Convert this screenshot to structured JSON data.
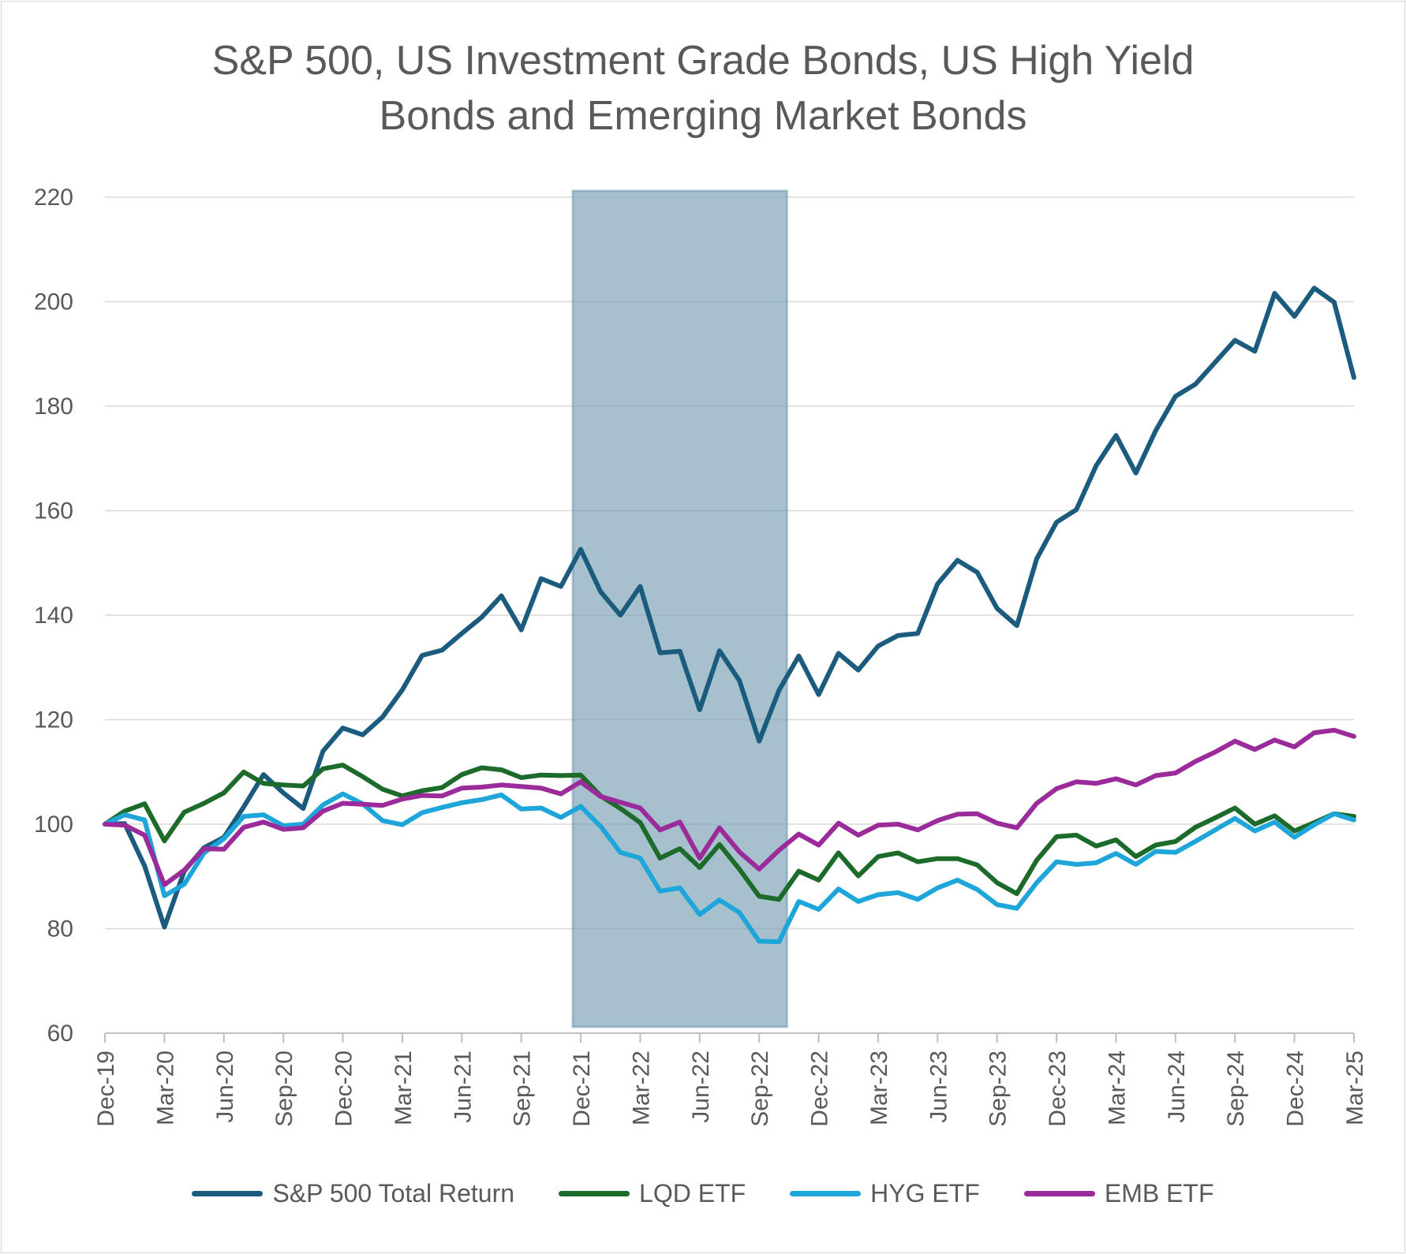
{
  "chart_data": {
    "type": "line",
    "title": "S&P 500, US Investment Grade Bonds, US High Yield Bonds and Emerging Market Bonds",
    "title_lines": [
      "S&P 500, US Investment Grade Bonds, US High Yield",
      "Bonds and Emerging Market Bonds"
    ],
    "xlabel": "",
    "ylabel": "",
    "ylim": [
      60,
      220
    ],
    "yticks": [
      60,
      80,
      100,
      120,
      140,
      160,
      180,
      200,
      220
    ],
    "grid": true,
    "legend_position": "bottom",
    "x_tick_labels": [
      "Dec-19",
      "Mar-20",
      "Jun-20",
      "Sep-20",
      "Dec-20",
      "Mar-21",
      "Jun-21",
      "Sep-21",
      "Dec-21",
      "Mar-22",
      "Jun-22",
      "Sep-22",
      "Dec-22",
      "Mar-23",
      "Jun-23",
      "Sep-23",
      "Dec-23",
      "Mar-24",
      "Jun-24",
      "Sep-24",
      "Dec-24",
      "Mar-25"
    ],
    "x_start": "2019-12",
    "x_end": "2025-03",
    "shaded_region": {
      "from": "2021-12",
      "to": "2022-10",
      "color": "#6f99b0"
    },
    "series": [
      {
        "name": "S&P 500 Total Return",
        "color": "#1a5b7e",
        "values": [
          100,
          100.1,
          92,
          80.3,
          91,
          95.5,
          97.5,
          103.3,
          109.5,
          106,
          103,
          114,
          118.4,
          117.1,
          120.5,
          125.7,
          132.3,
          133.3,
          136.5,
          139.6,
          143.7,
          137.2,
          147,
          145.5,
          152.6,
          144.5,
          140,
          145.5,
          132.8,
          133.1,
          121.9,
          133.2,
          127.5,
          115.9,
          125.6,
          132.2,
          124.8,
          132.7,
          129.5,
          134.1,
          136.1,
          136.5,
          146,
          150.5,
          148.2,
          141.3,
          138,
          150.8,
          157.8,
          160.2,
          168.6,
          174.4,
          167.2,
          175.3,
          181.9,
          184.2,
          188.4,
          192.6,
          190.5,
          201.6,
          197.2,
          202.6,
          199.9,
          185.5
        ]
      },
      {
        "name": "LQD ETF",
        "color": "#1c6b2a",
        "values": [
          100,
          102.5,
          103.9,
          96.8,
          102.3,
          104,
          106,
          110,
          107.8,
          107.5,
          107.3,
          110.6,
          111.3,
          109.1,
          106.7,
          105.4,
          106.4,
          107,
          109.5,
          110.8,
          110.4,
          108.9,
          109.4,
          109.3,
          109.4,
          105.4,
          103,
          100.3,
          93.5,
          95.3,
          91.7,
          96.1,
          91.4,
          86.2,
          85.6,
          91,
          89.3,
          94.5,
          90.1,
          93.8,
          94.5,
          92.8,
          93.4,
          93.4,
          92.2,
          88.8,
          86.7,
          93.1,
          97.6,
          97.9,
          95.8,
          97,
          93.8,
          96,
          96.7,
          99.4,
          101.2,
          103.1,
          100,
          101.6,
          98.7,
          100.3,
          102,
          101.5
        ]
      },
      {
        "name": "HYG ETF",
        "color": "#1ea5d9",
        "values": [
          100,
          101.8,
          100.8,
          86.3,
          88.5,
          94.5,
          97.2,
          101.5,
          101.8,
          99.7,
          100,
          103.7,
          105.8,
          103.9,
          100.7,
          99.9,
          102.2,
          103.2,
          104.1,
          104.7,
          105.6,
          102.9,
          103.1,
          101.3,
          103.4,
          99.6,
          94.6,
          93.5,
          87.2,
          87.8,
          82.7,
          85.5,
          83.1,
          77.6,
          77.5,
          85.2,
          83.7,
          87.6,
          85.2,
          86.5,
          86.9,
          85.6,
          87.8,
          89.3,
          87.5,
          84.6,
          83.9,
          88.8,
          92.8,
          92.3,
          92.6,
          94.4,
          92.3,
          94.8,
          94.6,
          96.7,
          98.9,
          101.1,
          98.7,
          100.4,
          97.5,
          99.9,
          102,
          100.8
        ]
      },
      {
        "name": "EMB ETF",
        "color": "#9b2a9b",
        "values": [
          100,
          99.8,
          97.9,
          88.4,
          91.2,
          95.3,
          95.2,
          99.4,
          100.4,
          99,
          99.3,
          102.5,
          104,
          103.8,
          103.6,
          104.8,
          105.5,
          105.4,
          106.9,
          107.1,
          107.5,
          107.2,
          106.9,
          105.8,
          108.1,
          105.3,
          104.2,
          103.1,
          98.9,
          100.4,
          93.5,
          99.3,
          94.7,
          91.4,
          95,
          98.1,
          96,
          100.2,
          97.9,
          99.8,
          100,
          98.9,
          100.7,
          101.9,
          102,
          100.2,
          99.3,
          104,
          106.8,
          108.1,
          107.8,
          108.7,
          107.5,
          109.3,
          109.8,
          112,
          113.8,
          115.9,
          114.3,
          116.1,
          114.8,
          117.5,
          118,
          116.8
        ]
      }
    ]
  }
}
